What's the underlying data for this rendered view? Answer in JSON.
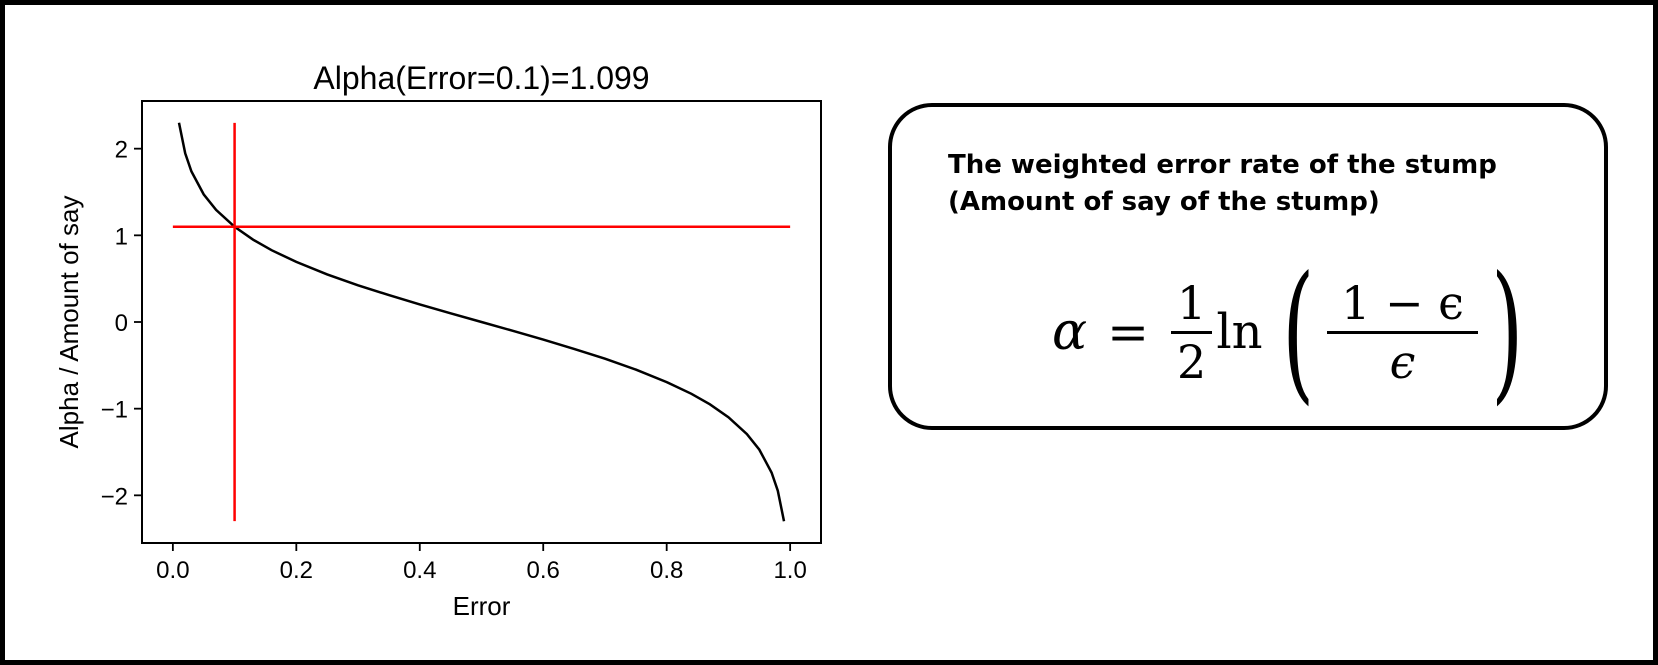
{
  "chart_data": {
    "type": "line",
    "title": "Alpha(Error=0.1)=1.099",
    "xlabel": "Error",
    "ylabel": "Alpha / Amount of say",
    "xlim": [
      -0.05,
      1.05
    ],
    "ylim": [
      -2.55,
      2.55
    ],
    "x_ticks": [
      0.0,
      0.2,
      0.4,
      0.6,
      0.8,
      1.0
    ],
    "x_tick_labels": [
      "0.0",
      "0.2",
      "0.4",
      "0.6",
      "0.8",
      "1.0"
    ],
    "y_ticks": [
      -2,
      -1,
      0,
      1,
      2
    ],
    "y_tick_labels": [
      "−2",
      "−1",
      "0",
      "1",
      "2"
    ],
    "x": [
      0.01,
      0.02,
      0.03,
      0.05,
      0.07,
      0.1,
      0.13,
      0.16,
      0.2,
      0.25,
      0.3,
      0.35,
      0.4,
      0.45,
      0.5,
      0.55,
      0.6,
      0.65,
      0.7,
      0.75,
      0.8,
      0.84,
      0.87,
      0.9,
      0.93,
      0.95,
      0.97,
      0.98,
      0.99
    ],
    "series": [
      {
        "color": "#000000",
        "values": [
          2.298,
          1.946,
          1.738,
          1.472,
          1.293,
          1.099,
          0.95,
          0.829,
          0.693,
          0.549,
          0.424,
          0.31,
          0.203,
          0.1,
          0.0,
          -0.1,
          -0.203,
          -0.31,
          -0.424,
          -0.549,
          -0.693,
          -0.829,
          -0.95,
          -1.099,
          -1.293,
          -1.472,
          -1.738,
          -1.946,
          -2.298
        ]
      }
    ],
    "reference_lines": [
      {
        "orientation": "horizontal",
        "y": 1.099,
        "x_range": [
          0.0,
          1.0
        ],
        "color": "#ff0000"
      },
      {
        "orientation": "vertical",
        "x": 0.1,
        "y_range": [
          -2.298,
          2.298
        ],
        "color": "#ff0000"
      }
    ],
    "grid": false
  },
  "formula_box": {
    "caption_line1": "The weighted error rate of the stump",
    "caption_line2": "(Amount of say of the stump)",
    "alpha_symbol": "α",
    "equals": "=",
    "frac1_num": "1",
    "frac1_den": "2",
    "ln": "ln",
    "paren_left": "(",
    "paren_right": ")",
    "frac2_num": "1 − ϵ",
    "frac2_den": "ϵ"
  }
}
